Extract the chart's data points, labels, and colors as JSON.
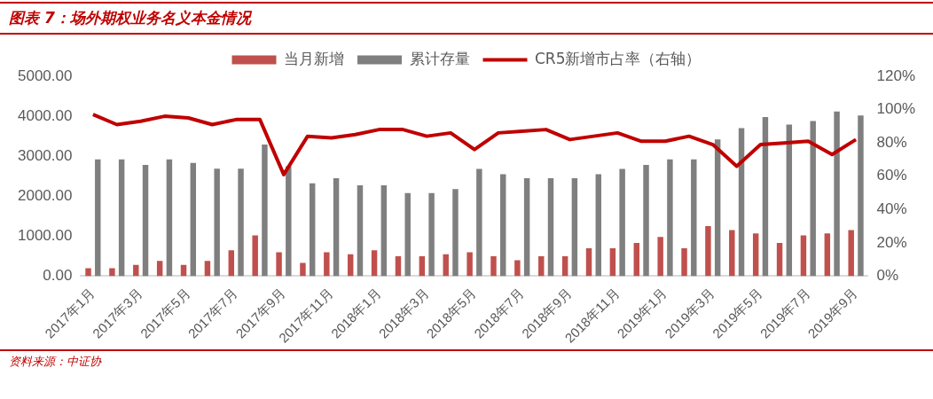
{
  "chart_data": {
    "type": "bar",
    "title": "图表 7：场外期权业务名义本金情况",
    "categories": [
      "2017年1月",
      null,
      "2017年3月",
      null,
      "2017年5月",
      null,
      "2017年7月",
      null,
      "2017年9月",
      null,
      "2017年11月",
      null,
      "2018年1月",
      null,
      "2018年3月",
      null,
      "2018年5月",
      null,
      "2018年7月",
      null,
      "2018年9月",
      null,
      "2018年11月",
      null,
      "2019年1月",
      null,
      "2019年3月",
      null,
      "2019年5月",
      null,
      "2019年7月",
      null,
      "2019年9月"
    ],
    "series": [
      {
        "name": "当月新增",
        "color": "#c0504d",
        "values": [
          200,
          200,
          280,
          380,
          280,
          380,
          650,
          1020,
          600,
          330,
          600,
          550,
          650,
          500,
          500,
          550,
          600,
          500,
          400,
          500,
          500,
          700,
          700,
          830,
          980,
          700,
          1250,
          1150,
          1070,
          830,
          1020,
          1070,
          1150
        ]
      },
      {
        "name": "累计存量",
        "color": "#7f7f7f",
        "values": [
          2920,
          2920,
          2780,
          2920,
          2830,
          2690,
          2690,
          3290,
          2750,
          2320,
          2450,
          2270,
          2270,
          2080,
          2080,
          2180,
          2680,
          2550,
          2450,
          2450,
          2450,
          2550,
          2680,
          2780,
          2920,
          2920,
          3420,
          3700,
          3980,
          3790,
          3880,
          4120,
          4020
        ]
      },
      {
        "name": "CR5新增市占率（右轴）",
        "type": "line",
        "axis": "y2",
        "color": "#c00000",
        "values": [
          97,
          91,
          93,
          96,
          95,
          91,
          94,
          94,
          61,
          84,
          83,
          85,
          88,
          88,
          84,
          86,
          76,
          86,
          87,
          88,
          82,
          84,
          86,
          81,
          81,
          84,
          79,
          66,
          79,
          80,
          81,
          73,
          82
        ]
      }
    ],
    "ylim": [
      0,
      5000
    ],
    "yticks": [
      {
        "value": 0,
        "label": "0.00"
      },
      {
        "value": 1000,
        "label": "1000.00"
      },
      {
        "value": 2000,
        "label": "2000.00"
      },
      {
        "value": 3000,
        "label": "3000.00"
      },
      {
        "value": 4000,
        "label": "4000.00"
      },
      {
        "value": 5000,
        "label": "5000.00"
      }
    ],
    "y2lim": [
      0,
      120
    ],
    "y2ticks": [
      {
        "value": 0,
        "label": "0%"
      },
      {
        "value": 20,
        "label": "20%"
      },
      {
        "value": 40,
        "label": "40%"
      },
      {
        "value": 60,
        "label": "60%"
      },
      {
        "value": 80,
        "label": "80%"
      },
      {
        "value": 100,
        "label": "100%"
      },
      {
        "value": 120,
        "label": "120%"
      }
    ],
    "legend": "top",
    "grid": false,
    "marker": "none",
    "annotations": [
      "资料来源：中证协"
    ]
  }
}
